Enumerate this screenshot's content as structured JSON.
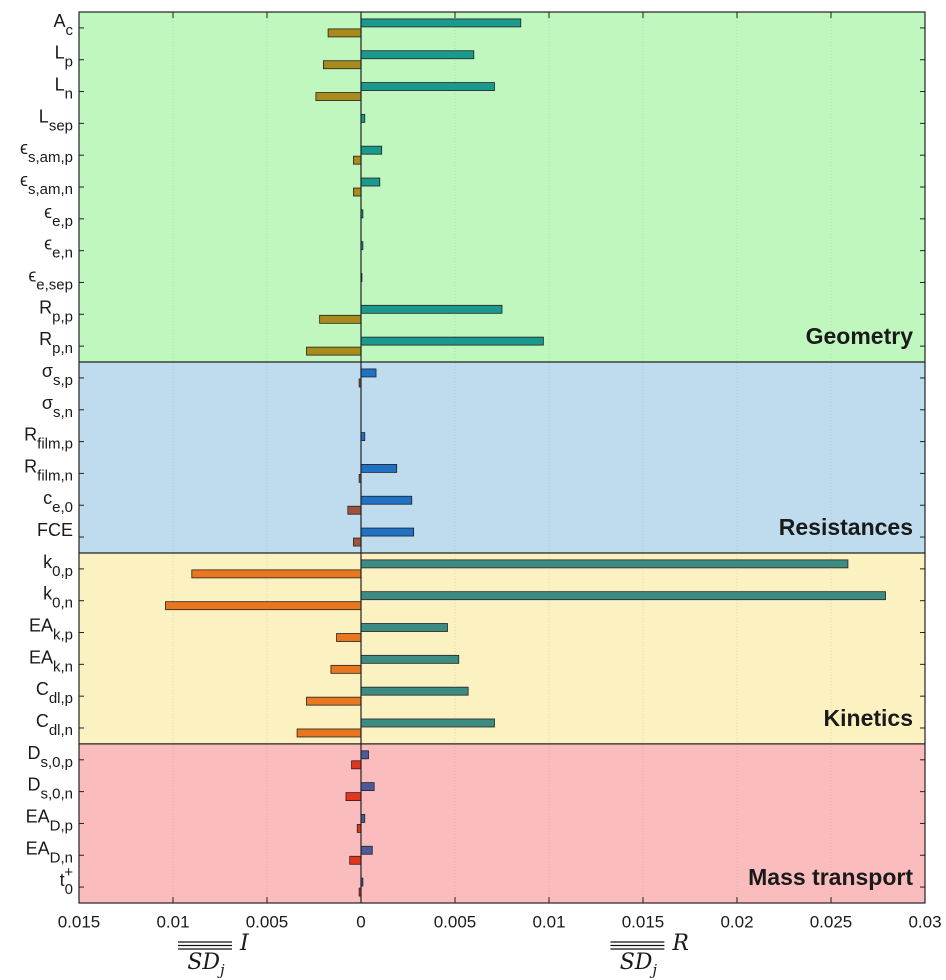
{
  "chart_data": {
    "type": "bar",
    "xlim": [
      -0.015,
      0.03
    ],
    "xticks": [
      {
        "value": -0.015,
        "label": "0.015"
      },
      {
        "value": -0.01,
        "label": "0.01"
      },
      {
        "value": -0.005,
        "label": "0.005"
      },
      0,
      0.005,
      0.01,
      0.015,
      0.02,
      0.025,
      0.03
    ],
    "grid": true,
    "xlabels": [
      {
        "base": "SD",
        "sub": "j",
        "sup": "I",
        "value": -0.0075
      },
      {
        "base": "SD",
        "sub": "j",
        "sup": "R",
        "value": 0.0155
      }
    ],
    "groups": [
      {
        "name": "Geometry",
        "color": "#bff7bf",
        "categories": [
          {
            "base": "A",
            "sub": "c"
          },
          {
            "base": "L",
            "sub": "p"
          },
          {
            "base": "L",
            "sub": "n"
          },
          {
            "base": "L",
            "sub": "sep"
          },
          {
            "base": "ϵ",
            "sub": "s,am,p"
          },
          {
            "base": "ϵ",
            "sub": "s,am,n"
          },
          {
            "base": "ϵ",
            "sub": "e,p"
          },
          {
            "base": "ϵ",
            "sub": "e,n"
          },
          {
            "base": "ϵ",
            "sub": "e,sep"
          },
          {
            "base": "R",
            "sub": "p,p"
          },
          {
            "base": "R",
            "sub": "p,n"
          }
        ],
        "series": [
          {
            "color": "#1a9a8c",
            "values": [
              0.0085,
              0.006,
              0.0071,
              0.0002,
              0.0011,
              0.001,
              0.0001,
              0.0001,
              5e-05,
              0.0075,
              0.0097
            ]
          },
          {
            "color": "#a98a1c",
            "values": [
              -0.00175,
              -0.002,
              -0.0024,
              0,
              -0.0004,
              -0.0004,
              0,
              0,
              0,
              -0.0022,
              -0.0029
            ]
          }
        ]
      },
      {
        "name": "Resistances",
        "color": "#bedcee",
        "categories": [
          {
            "base": "σ",
            "sub": "s,p"
          },
          {
            "base": "σ",
            "sub": "s,n"
          },
          {
            "base": "R",
            "sub": "film,p"
          },
          {
            "base": "R",
            "sub": "film,n"
          },
          {
            "base": "c",
            "sub": "e,0"
          },
          {
            "base": "FCE"
          }
        ],
        "series": [
          {
            "color": "#1f72c4",
            "values": [
              0.0008,
              0,
              0.0002,
              0.0019,
              0.0027,
              0.0028
            ]
          },
          {
            "color": "#a0523a",
            "values": [
              -0.0001,
              0,
              0,
              -0.0001,
              -0.0007,
              -0.0004
            ]
          }
        ]
      },
      {
        "name": "Kinetics",
        "color": "#fcf1c0",
        "categories": [
          {
            "base": "k",
            "sub": "0,p"
          },
          {
            "base": "k",
            "sub": "0,n"
          },
          {
            "base": "EA",
            "sub": "k,p"
          },
          {
            "base": "EA",
            "sub": "k,n"
          },
          {
            "base": "C",
            "sub": "dl,p"
          },
          {
            "base": "C",
            "sub": "dl,n"
          }
        ],
        "series": [
          {
            "color": "#3d8c84",
            "values": [
              0.0259,
              0.0279,
              0.0046,
              0.0052,
              0.0057,
              0.0071
            ]
          },
          {
            "color": "#e8771f",
            "values": [
              -0.009,
              -0.0104,
              -0.0013,
              -0.0016,
              -0.0029,
              -0.0034
            ]
          }
        ]
      },
      {
        "name": "Mass transport",
        "color": "#fbbcbe",
        "categories": [
          {
            "base": "D",
            "sub": "s,0,p"
          },
          {
            "base": "D",
            "sub": "s,0,n"
          },
          {
            "base": "EA",
            "sub": "D,p"
          },
          {
            "base": "EA",
            "sub": "D,n"
          },
          {
            "base": "t",
            "sub": "0",
            "sup": "+"
          }
        ],
        "series": [
          {
            "color": "#4c5a9c",
            "values": [
              0.0004,
              0.0007,
              0.0002,
              0.0006,
              0.0001
            ]
          },
          {
            "color": "#e3361f",
            "values": [
              -0.0005,
              -0.0008,
              -0.0002,
              -0.0006,
              -0.0001
            ]
          }
        ]
      }
    ]
  }
}
